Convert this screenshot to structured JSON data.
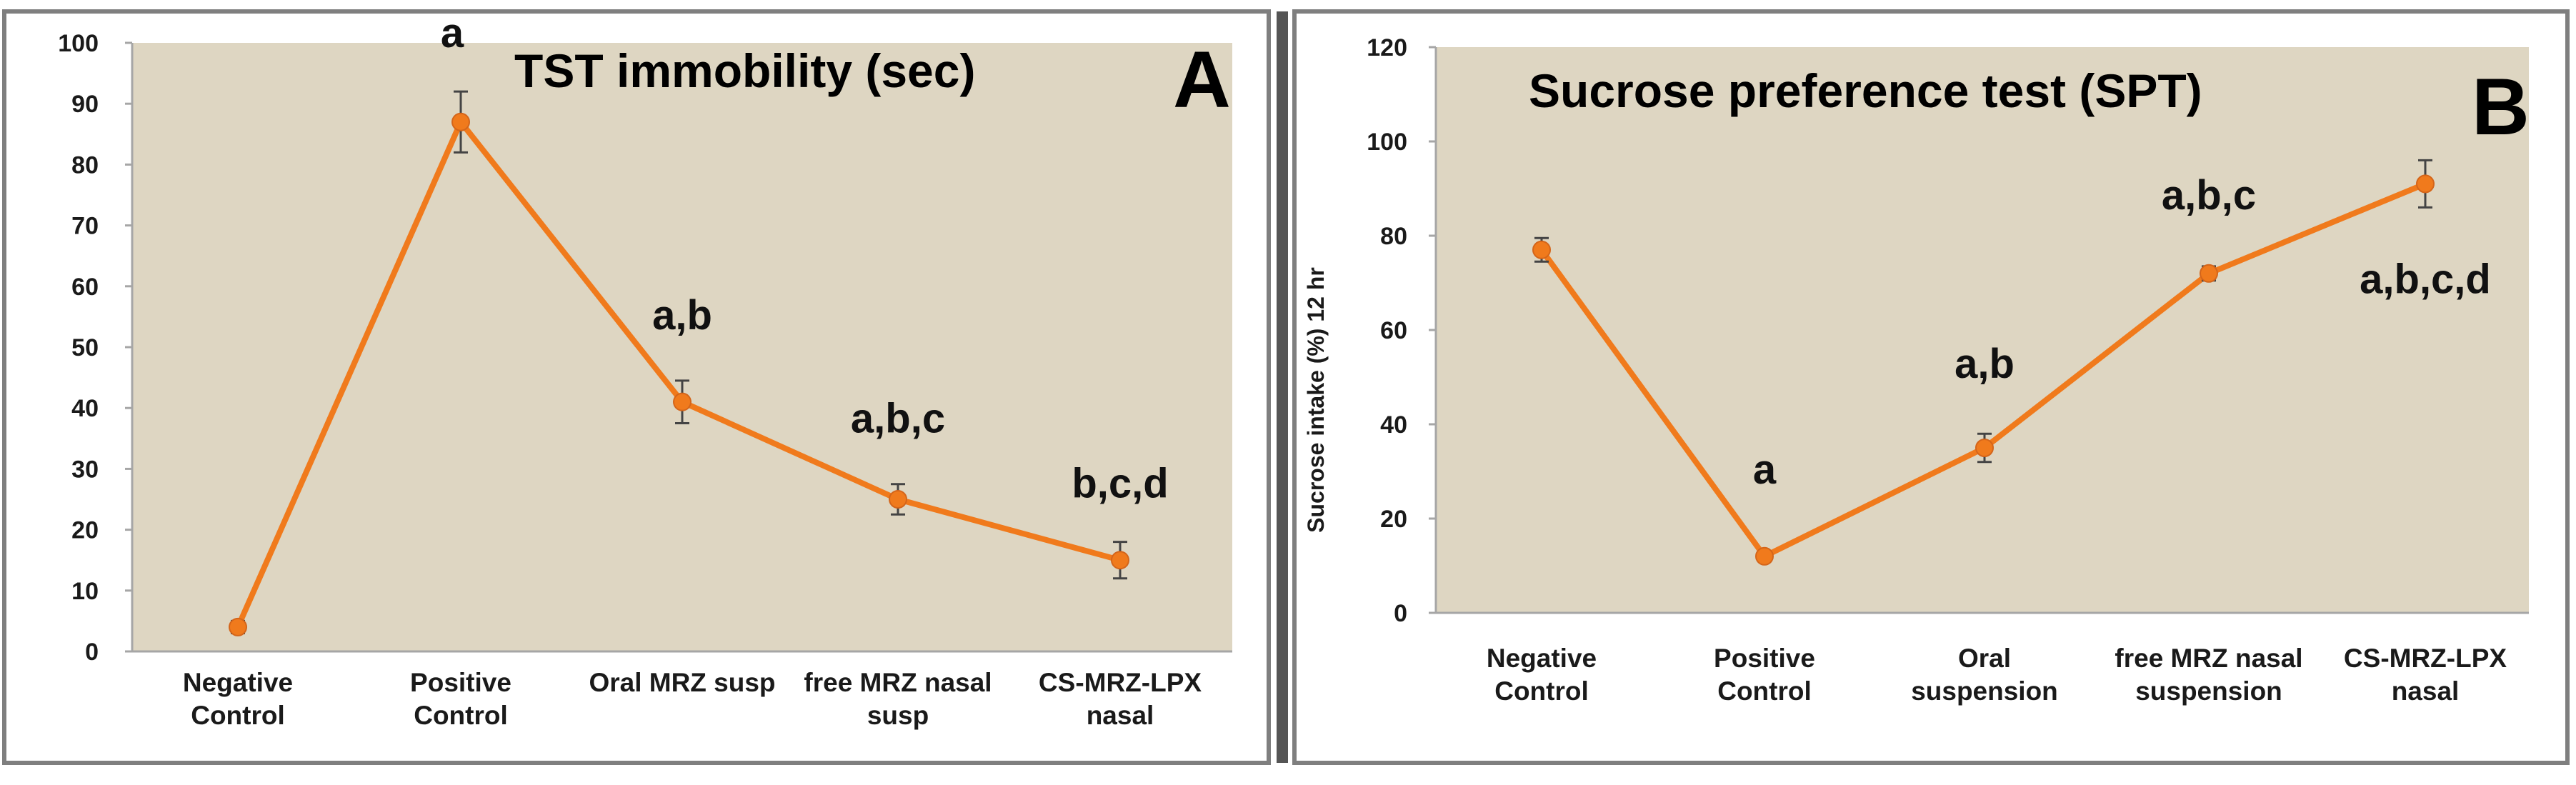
{
  "chart_data": [
    {
      "type": "line",
      "title": "TST immobility (sec)",
      "panel_label": "A",
      "xlabel": "",
      "ylabel": "",
      "ylim": [
        0,
        100
      ],
      "yticks": [
        0,
        10,
        20,
        30,
        40,
        50,
        60,
        70,
        80,
        90,
        100
      ],
      "grid": false,
      "categories": [
        [
          "Negative",
          "Control"
        ],
        [
          "Positive",
          "Control"
        ],
        [
          "Oral MRZ susp"
        ],
        [
          "free MRZ nasal",
          "susp"
        ],
        [
          "CS-MRZ-LPX",
          "nasal"
        ]
      ],
      "series": [
        {
          "name": "TST immobility",
          "values": [
            4,
            87,
            41,
            25,
            15
          ],
          "errors": [
            1,
            5,
            3.5,
            2.5,
            3
          ],
          "color": "#f07a1c"
        }
      ],
      "annotations": [
        "",
        "a",
        "a,b",
        "a,b,c",
        "b,c,d"
      ]
    },
    {
      "type": "line",
      "title": "Sucrose preference test (SPT)",
      "panel_label": "B",
      "xlabel": "",
      "ylabel": "Sucrose intake (%) 12 hr",
      "ylim": [
        0,
        120
      ],
      "yticks": [
        0,
        20,
        40,
        60,
        80,
        100,
        120
      ],
      "grid": false,
      "categories": [
        [
          "Negative",
          "Control"
        ],
        [
          "Positive",
          "Control"
        ],
        [
          "Oral",
          "suspension"
        ],
        [
          "free MRZ nasal",
          "suspension"
        ],
        [
          "CS-MRZ-LPX",
          "nasal"
        ]
      ],
      "series": [
        {
          "name": "Sucrose intake",
          "values": [
            77,
            12,
            35,
            72,
            91
          ],
          "errors": [
            2.5,
            1,
            3,
            1.5,
            5
          ],
          "color": "#f07a1c"
        }
      ],
      "annotations": [
        "",
        "a",
        "a,b",
        "a,b,c",
        "a,b,c,d"
      ]
    }
  ],
  "colors": {
    "plot_background": "#ded6c2",
    "line": "#f07a1c",
    "border": "#7f7f7f",
    "axis": "#a6a6a6"
  }
}
